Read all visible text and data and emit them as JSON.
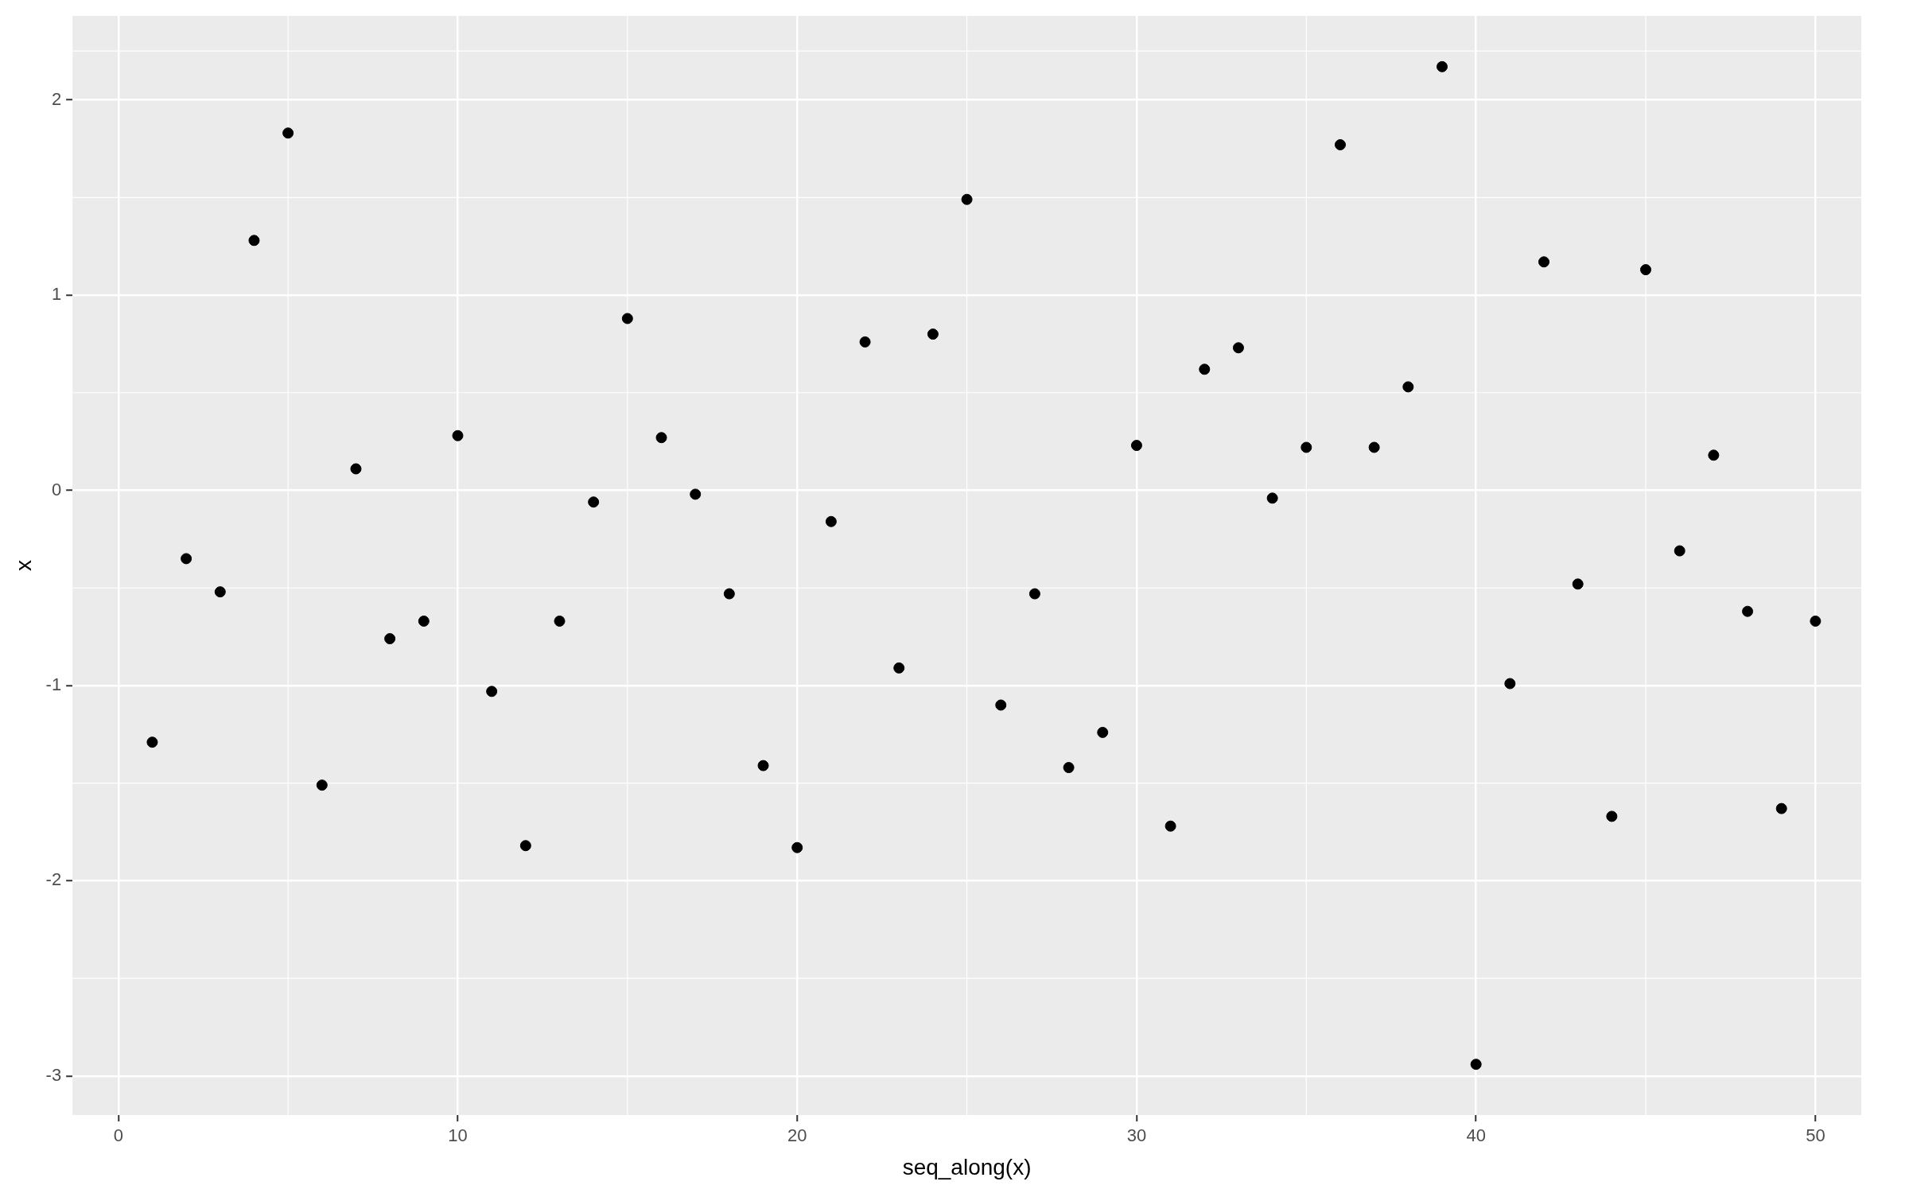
{
  "chart_data": {
    "type": "scatter",
    "xlabel": "seq_along(x)",
    "ylabel": "x",
    "x": [
      1,
      2,
      3,
      4,
      5,
      6,
      7,
      8,
      9,
      10,
      11,
      12,
      13,
      14,
      15,
      16,
      17,
      18,
      19,
      20,
      21,
      22,
      23,
      24,
      25,
      26,
      27,
      28,
      29,
      30,
      31,
      32,
      33,
      34,
      35,
      36,
      37,
      38,
      39,
      40,
      41,
      42,
      43,
      44,
      45,
      46,
      47,
      48,
      49,
      50
    ],
    "series": [
      {
        "color": "#000000",
        "values": [
          -1.29,
          -0.35,
          -0.52,
          1.28,
          1.83,
          -1.51,
          0.11,
          -0.76,
          -0.67,
          0.28,
          -1.03,
          -1.82,
          -0.67,
          -0.06,
          0.88,
          0.27,
          -0.02,
          -0.53,
          -1.41,
          -1.83,
          -0.16,
          0.76,
          -0.91,
          0.8,
          1.49,
          -1.1,
          -0.53,
          -1.42,
          -1.24,
          0.23,
          -1.72,
          0.62,
          0.73,
          -0.04,
          0.22,
          1.77,
          0.22,
          0.53,
          2.17,
          -2.94,
          -0.99,
          1.17,
          -0.48,
          -1.67,
          1.13,
          -0.31,
          0.18,
          -0.62,
          -1.63,
          -0.67
        ]
      }
    ],
    "xlim": [
      -1.35,
      51.35
    ],
    "xticks": [
      0,
      10,
      20,
      30,
      40,
      50
    ],
    "ylim": [
      -3.2,
      2.43
    ],
    "yticks": [
      -3,
      -2,
      -1,
      0,
      1,
      2
    ],
    "grid": true,
    "marker": "circle",
    "legend": false
  }
}
